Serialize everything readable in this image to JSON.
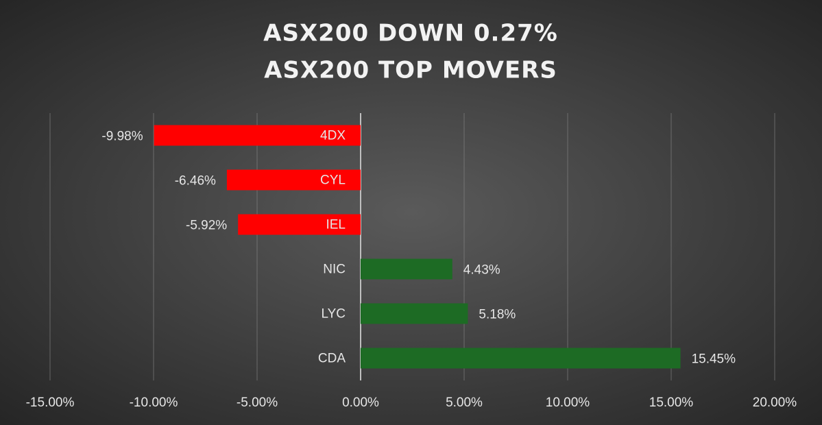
{
  "chart_data": {
    "type": "bar",
    "orientation": "horizontal",
    "title": "ASX200 DOWN 0.27%",
    "subtitle": "ASX200 TOP MOVERS",
    "categories": [
      "4DX",
      "CYL",
      "IEL",
      "NIC",
      "LYC",
      "CDA"
    ],
    "values": [
      -9.98,
      -6.46,
      -5.92,
      4.43,
      5.18,
      15.45
    ],
    "value_labels": [
      "-9.98%",
      "-6.46%",
      "-5.92%",
      "4.43%",
      "5.18%",
      "15.45%"
    ],
    "colors": [
      "#ff0000",
      "#ff0000",
      "#ff0000",
      "#1d6b24",
      "#1d6b24",
      "#1d6b24"
    ],
    "xlim": [
      -15,
      20
    ],
    "xticks": [
      {
        "value": -15,
        "label": "-15.00%"
      },
      {
        "value": -10,
        "label": "-10.00%"
      },
      {
        "value": -5,
        "label": "-5.00%"
      },
      {
        "value": 0,
        "label": "0.00%"
      },
      {
        "value": 5,
        "label": "5.00%"
      },
      {
        "value": 10,
        "label": "10.00%"
      },
      {
        "value": 15,
        "label": "15.00%"
      },
      {
        "value": 20,
        "label": "20.00%"
      }
    ],
    "grid": true
  }
}
